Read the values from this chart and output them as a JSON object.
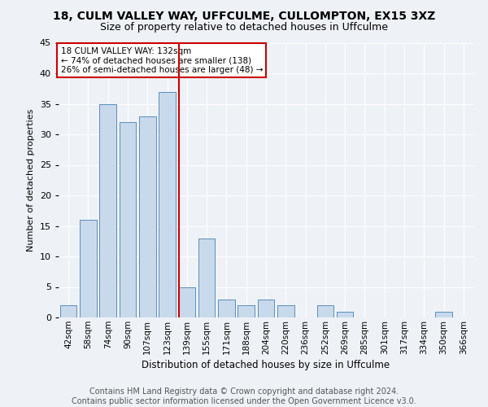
{
  "title": "18, CULM VALLEY WAY, UFFCULME, CULLOMPTON, EX15 3XZ",
  "subtitle": "Size of property relative to detached houses in Uffculme",
  "xlabel": "Distribution of detached houses by size in Uffculme",
  "ylabel": "Number of detached properties",
  "bar_labels": [
    "42sqm",
    "58sqm",
    "74sqm",
    "90sqm",
    "107sqm",
    "123sqm",
    "139sqm",
    "155sqm",
    "171sqm",
    "188sqm",
    "204sqm",
    "220sqm",
    "236sqm",
    "252sqm",
    "269sqm",
    "285sqm",
    "301sqm",
    "317sqm",
    "334sqm",
    "350sqm",
    "366sqm"
  ],
  "bar_values": [
    2,
    16,
    35,
    32,
    33,
    37,
    5,
    13,
    3,
    2,
    3,
    2,
    0,
    2,
    1,
    0,
    0,
    0,
    0,
    1,
    0
  ],
  "bar_color": "#c9d9ec",
  "bar_edge_color": "#5b8db8",
  "vline_x": 5.575,
  "property_line_label": "18 CULM VALLEY WAY: 132sqm",
  "annotation_line1": "← 74% of detached houses are smaller (138)",
  "annotation_line2": "26% of semi-detached houses are larger (48) →",
  "annotation_box_color": "#ffffff",
  "annotation_box_edge_color": "#cc0000",
  "vline_color": "#cc0000",
  "ylim": [
    0,
    45
  ],
  "yticks": [
    0,
    5,
    10,
    15,
    20,
    25,
    30,
    35,
    40,
    45
  ],
  "footer_text": "Contains HM Land Registry data © Crown copyright and database right 2024.\nContains public sector information licensed under the Open Government Licence v3.0.",
  "bg_color": "#eef2f7",
  "grid_color": "#ffffff",
  "title_fontsize": 10,
  "subtitle_fontsize": 9,
  "footer_fontsize": 7
}
